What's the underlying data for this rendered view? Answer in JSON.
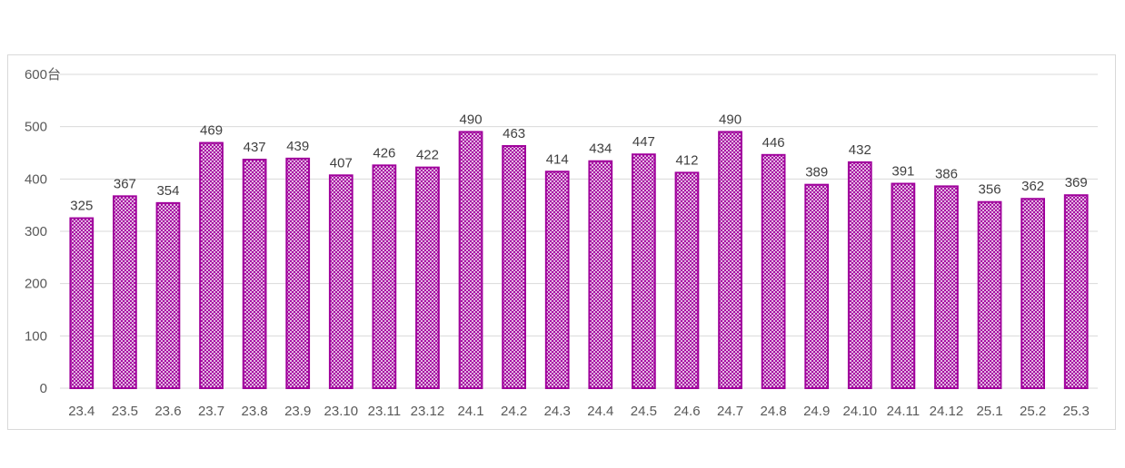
{
  "chart_data": {
    "type": "bar",
    "title": "",
    "xlabel": "",
    "ylabel": "",
    "unit": "台",
    "ylim": [
      0,
      600
    ],
    "yticks": [
      0,
      100,
      200,
      300,
      400,
      500,
      600
    ],
    "grid": true,
    "categories": [
      "23.4",
      "23.5",
      "23.6",
      "23.7",
      "23.8",
      "23.9",
      "23.10",
      "23.11",
      "23.12",
      "24.1",
      "24.2",
      "24.3",
      "24.4",
      "24.5",
      "24.6",
      "24.7",
      "24.8",
      "24.9",
      "24.10",
      "24.11",
      "24.12",
      "25.1",
      "25.2",
      "25.3"
    ],
    "values": [
      325,
      367,
      354,
      469,
      437,
      439,
      407,
      426,
      422,
      490,
      463,
      414,
      434,
      447,
      412,
      490,
      446,
      389,
      432,
      391,
      386,
      356,
      362,
      369
    ],
    "bar_color": "#a0009c",
    "bar_pattern": "crosshatch"
  }
}
